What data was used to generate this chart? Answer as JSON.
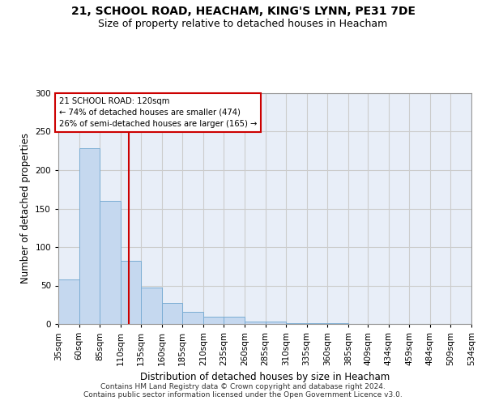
{
  "title_line1": "21, SCHOOL ROAD, HEACHAM, KING'S LYNN, PE31 7DE",
  "title_line2": "Size of property relative to detached houses in Heacham",
  "xlabel": "Distribution of detached houses by size in Heacham",
  "ylabel": "Number of detached properties",
  "bar_values": [
    58,
    228,
    160,
    82,
    47,
    27,
    16,
    9,
    9,
    3,
    3,
    1,
    1,
    1,
    0,
    0,
    0,
    0,
    0,
    0
  ],
  "bin_edges": [
    35,
    60,
    85,
    110,
    135,
    160,
    185,
    210,
    235,
    260,
    285,
    310,
    335,
    360,
    385,
    409,
    434,
    459,
    484,
    509,
    534
  ],
  "x_labels": [
    "35sqm",
    "60sqm",
    "85sqm",
    "110sqm",
    "135sqm",
    "160sqm",
    "185sqm",
    "210sqm",
    "235sqm",
    "260sqm",
    "285sqm",
    "310sqm",
    "335sqm",
    "360sqm",
    "385sqm",
    "409sqm",
    "434sqm",
    "459sqm",
    "484sqm",
    "509sqm",
    "534sqm"
  ],
  "bar_color": "#c5d8ef",
  "bar_edge_color": "#7badd4",
  "vline_x": 120,
  "vline_color": "#cc0000",
  "annotation_text": "21 SCHOOL ROAD: 120sqm\n← 74% of detached houses are smaller (474)\n26% of semi-detached houses are larger (165) →",
  "annotation_box_color": "#ffffff",
  "annotation_box_edge": "#cc0000",
  "ylim": [
    0,
    300
  ],
  "yticks": [
    0,
    50,
    100,
    150,
    200,
    250,
    300
  ],
  "grid_color": "#cccccc",
  "background_color": "#e8eef8",
  "footer_text": "Contains HM Land Registry data © Crown copyright and database right 2024.\nContains public sector information licensed under the Open Government Licence v3.0.",
  "title_fontsize": 10,
  "subtitle_fontsize": 9,
  "label_fontsize": 8.5,
  "tick_fontsize": 7.5,
  "footer_fontsize": 6.5
}
